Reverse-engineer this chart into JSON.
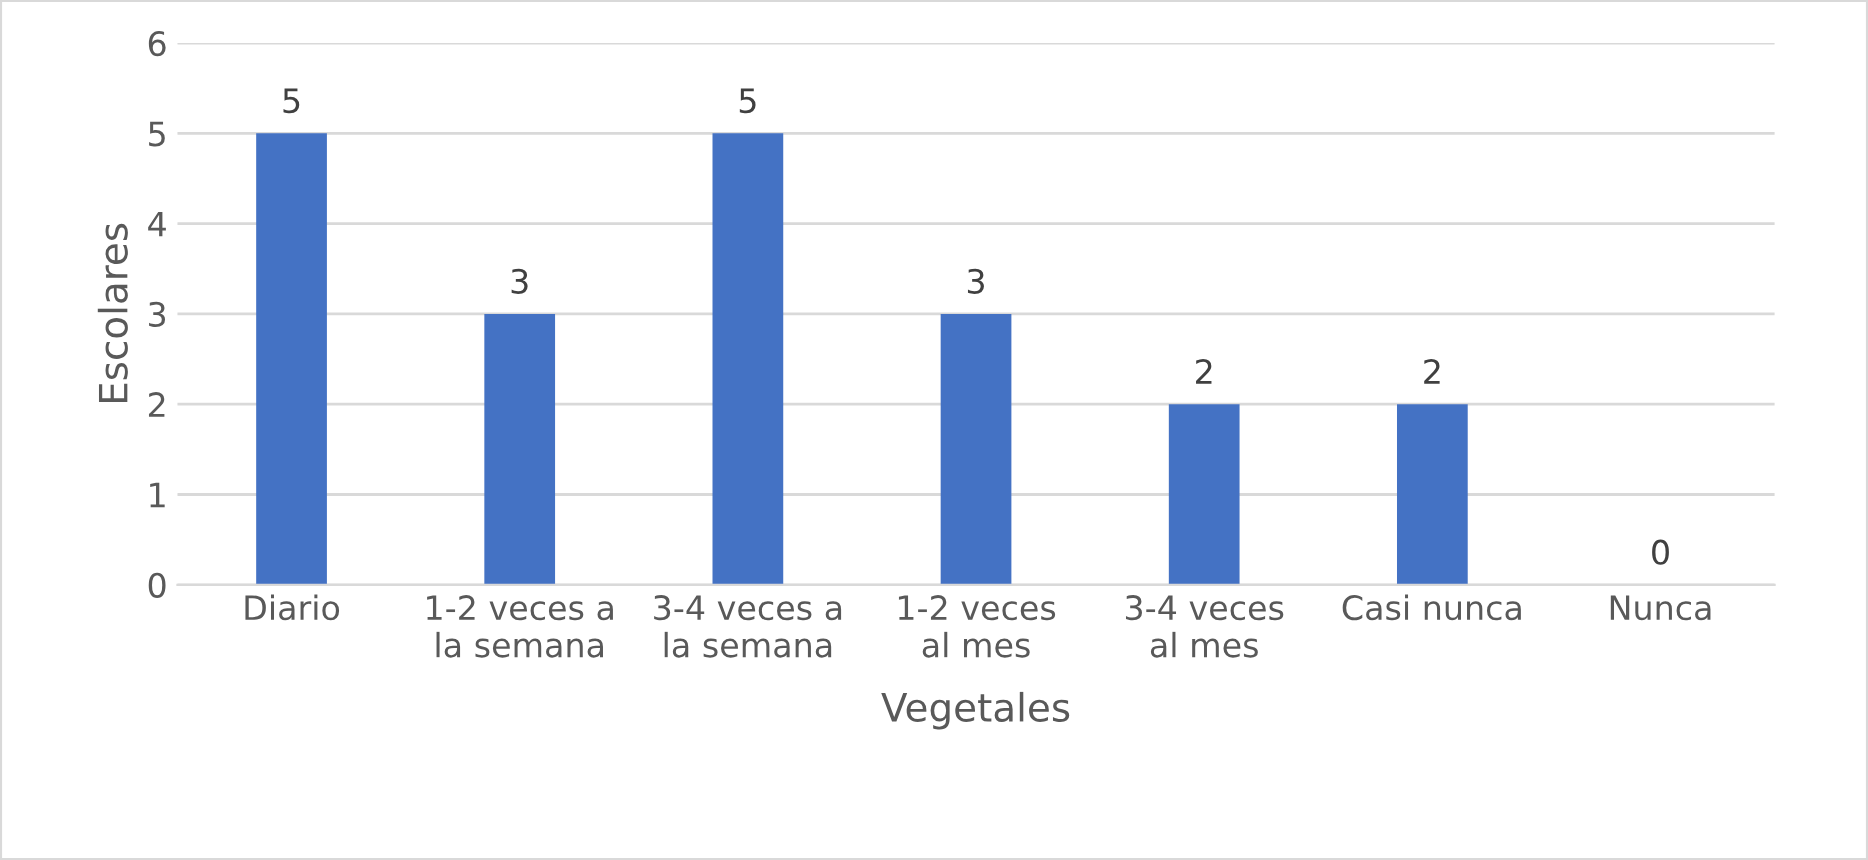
{
  "chart_data": {
    "type": "bar",
    "xlabel": "Vegetales",
    "ylabel": "Escolares",
    "categories": [
      "Diario",
      "1-2 veces a\nla semana",
      "3-4 veces a\nla semana",
      "1-2 veces\nal mes",
      "3-4 veces\nal mes",
      "Casi nunca",
      "Nunca"
    ],
    "values": [
      5,
      3,
      5,
      3,
      2,
      2,
      0
    ],
    "color": "#4472c4",
    "ylim": [
      0,
      6
    ],
    "yticks": [
      0,
      1,
      2,
      3,
      4,
      5,
      6
    ],
    "grid": "y",
    "data_labels": true,
    "legend": false
  }
}
